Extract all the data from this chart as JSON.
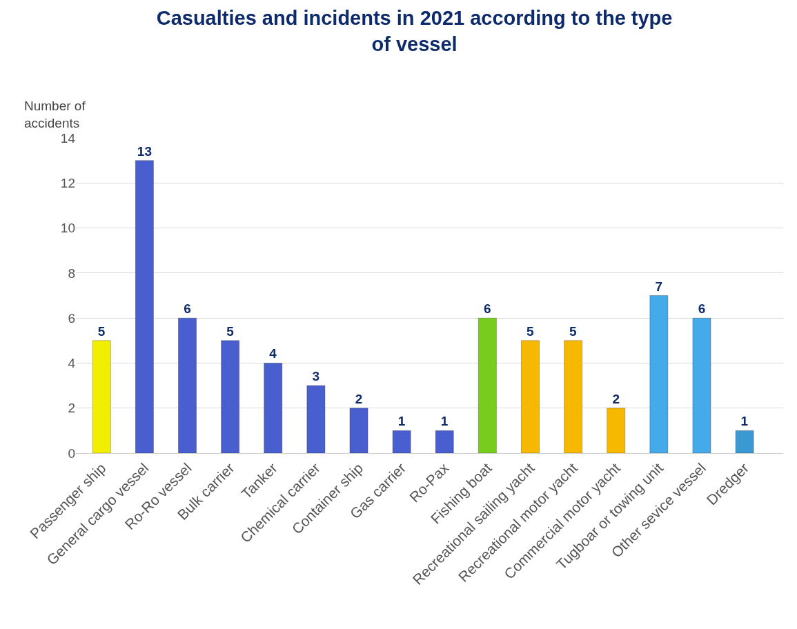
{
  "chart_data": {
    "type": "bar",
    "title": "Casualties and incidents in 2021 according to the type of vessel",
    "ylabel": "Number of accidents",
    "categories": [
      "Passenger ship",
      "General cargo vessel",
      "Ro-Ro vessel",
      "Bulk carrier",
      "Tanker",
      "Chemical carrier",
      "Container ship",
      "Gas carrier",
      "Ro-Pax",
      "Fishing boat",
      "Recreational sailing yacht",
      "Recreational motor yacht",
      "Commercial motor yacht",
      "Tugboar or towing unit",
      "Other sevice vessel",
      "Dredger"
    ],
    "values": [
      5,
      13,
      6,
      5,
      4,
      3,
      2,
      1,
      1,
      6,
      5,
      5,
      2,
      7,
      6,
      1
    ],
    "colors": [
      "#f2ee00",
      "#4a5fcf",
      "#4a5fcf",
      "#4a5fcf",
      "#4a5fcf",
      "#4a5fcf",
      "#4a5fcf",
      "#4a5fcf",
      "#4a5fcf",
      "#78cc1c",
      "#f7b900",
      "#f7b900",
      "#f7b900",
      "#45aaea",
      "#45aaea",
      "#3a98d2"
    ],
    "ylim": [
      0,
      14
    ],
    "yticks": [
      0,
      2,
      4,
      6,
      8,
      10,
      12,
      14
    ],
    "grid": "y",
    "data_labels": true
  }
}
